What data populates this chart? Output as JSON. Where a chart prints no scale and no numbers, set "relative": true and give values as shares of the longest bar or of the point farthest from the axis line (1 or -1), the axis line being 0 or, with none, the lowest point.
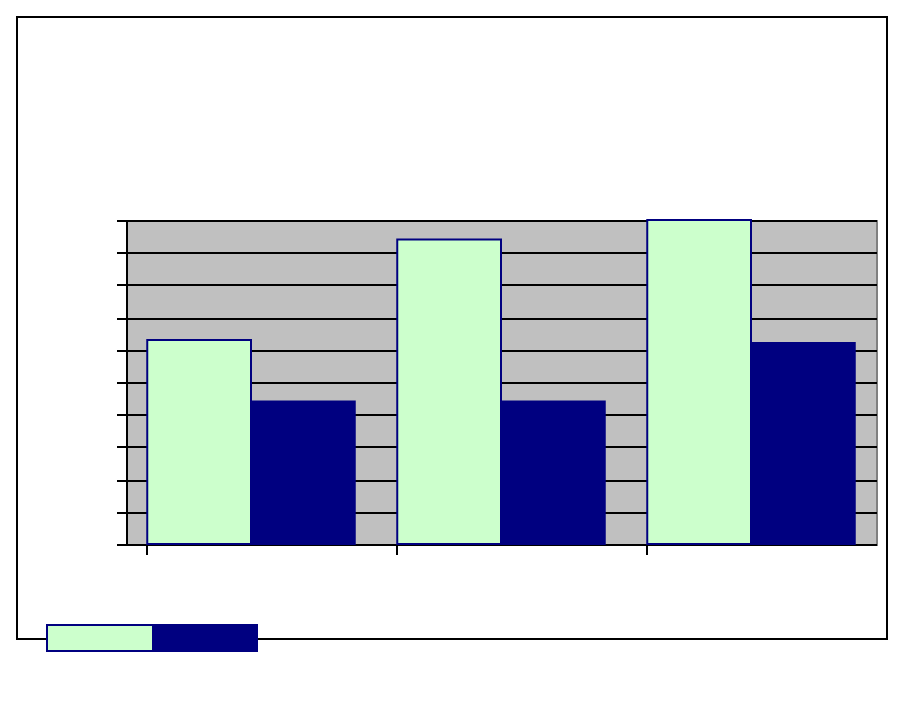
{
  "chart_data": {
    "type": "bar",
    "relative": true,
    "categories": [
      null,
      null,
      null
    ],
    "series": [
      {
        "color": "#ccffcc",
        "values": [
          0.63,
          0.94,
          1
        ]
      },
      {
        "color": "#000080",
        "values": [
          0.44,
          0.44,
          0.62
        ]
      }
    ],
    "grid": "y"
  }
}
